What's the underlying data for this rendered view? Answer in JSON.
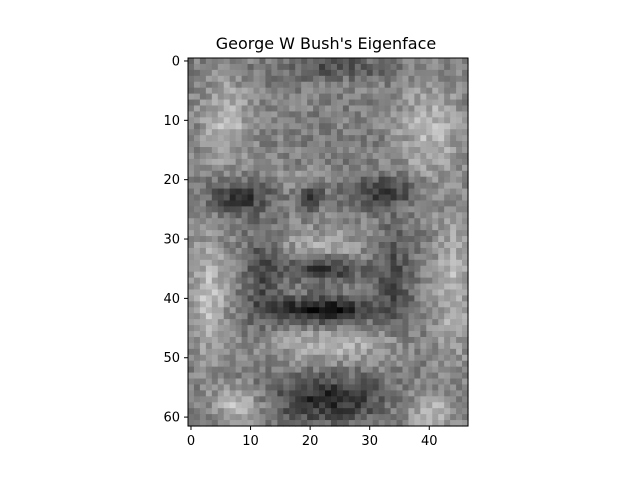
{
  "chart_data": {
    "type": "heatmap",
    "title": "George W Bush's Eigenface",
    "colormap": "gray",
    "image_size": {
      "cols": 47,
      "rows": 62
    },
    "xlim": [
      -0.5,
      46.5
    ],
    "ylim": [
      61.5,
      -0.5
    ],
    "x_ticks": [
      0,
      10,
      20,
      30,
      40
    ],
    "y_ticks": [
      0,
      10,
      20,
      30,
      40,
      50,
      60
    ],
    "x_tick_labels": [
      "0",
      "10",
      "20",
      "30",
      "40"
    ],
    "y_tick_labels": [
      "0",
      "10",
      "20",
      "30",
      "40",
      "50",
      "60"
    ],
    "grid": false,
    "face_anchors": [
      {
        "x": 6,
        "y": 22,
        "feature": "left eye"
      },
      {
        "x": 19,
        "y": 23,
        "feature": "nose bridge shadow"
      },
      {
        "x": 31,
        "y": 22,
        "feature": "right eye"
      },
      {
        "x": 23,
        "y": 35,
        "feature": "nostrils"
      },
      {
        "x": 22,
        "y": 42,
        "feature": "mouth"
      },
      {
        "x": 23,
        "y": 57,
        "feature": "chin shadow"
      }
    ]
  }
}
